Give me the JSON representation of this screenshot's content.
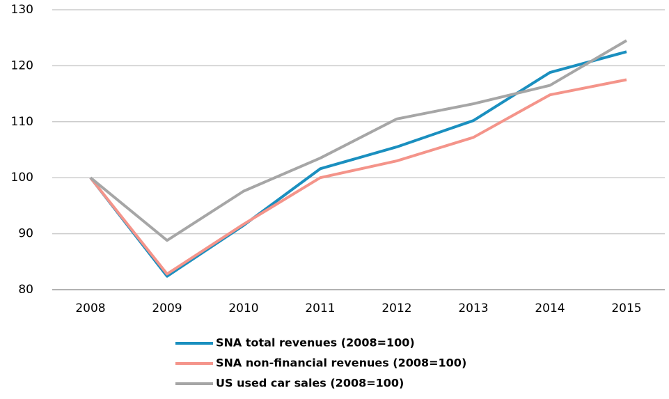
{
  "chart_data": {
    "type": "line",
    "categories": [
      "2008",
      "2009",
      "2010",
      "2011",
      "2012",
      "2013",
      "2014",
      "2015"
    ],
    "series": [
      {
        "name": "SNA total revenues (2008=100)",
        "color": "#1a8fbf",
        "values": [
          100,
          82.4,
          91.5,
          101.6,
          105.5,
          110.2,
          118.8,
          122.5
        ]
      },
      {
        "name": "SNA non-financial revenues (2008=100)",
        "color": "#f4948a",
        "values": [
          100,
          82.8,
          91.7,
          100,
          103,
          107.2,
          114.8,
          117.5
        ]
      },
      {
        "name": "US used car sales (2008=100)",
        "color": "#a6a6a6",
        "values": [
          100,
          88.8,
          97.6,
          103.5,
          110.5,
          113.2,
          116.5,
          124.5
        ]
      }
    ],
    "ylim": [
      80,
      130
    ],
    "yticks": [
      80,
      90,
      100,
      110,
      120,
      130
    ],
    "grid": true,
    "legend": "bottom"
  }
}
